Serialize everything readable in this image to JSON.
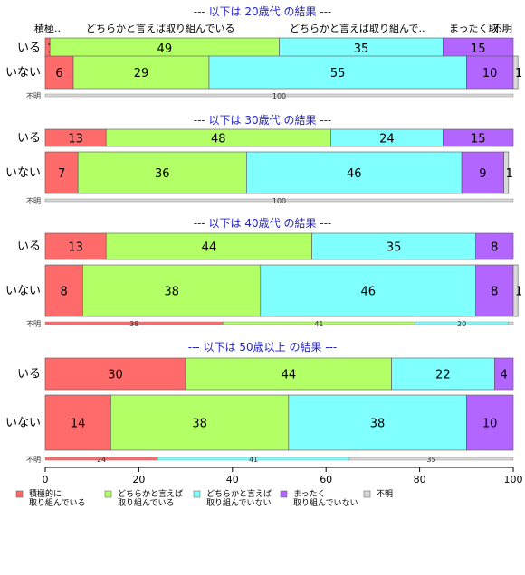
{
  "chart_data": {
    "type": "bar",
    "orientation": "horizontal",
    "stacked": true,
    "xlim": [
      0,
      100
    ],
    "x_ticks": [
      0,
      20,
      40,
      60,
      80,
      100
    ],
    "categories": [
      "積極的に取り組んでいる",
      "どちらかと言えば取り組んでいる",
      "どちらかと言えば取り組んでいない",
      "まったく取り組んでいない",
      "不明"
    ],
    "colors": [
      "#ff6b6b",
      "#b3ff66",
      "#80ffff",
      "#b366ff",
      "#d9d9d9"
    ],
    "column_headers": [
      "積極..",
      "どちらかと言えば取り組んでいる",
      "どちらかと言えば取り組んで..",
      "まったく取..",
      "不明"
    ],
    "legend": {
      "position": "bottom",
      "items": [
        {
          "line1": "積極的に",
          "line2": "取り組んでいる"
        },
        {
          "line1": "どちらかと言えば",
          "line2": "取り組んでいる"
        },
        {
          "line1": "どちらかと言えば",
          "line2": "取り組んでいない"
        },
        {
          "line1": "まったく",
          "line2": "取り組んでいない"
        },
        {
          "line1": "不明",
          "line2": ""
        }
      ]
    },
    "panels": [
      {
        "title": "--- 以下は 20歳代 の結果 ---",
        "rows": [
          {
            "label": "いる",
            "values": [
              1,
              49,
              35,
              15,
              0
            ],
            "labels": [
              "1",
              "49",
              "35",
              "15",
              ""
            ]
          },
          {
            "label": "いない",
            "values": [
              6,
              29,
              55,
              10,
              1
            ],
            "labels": [
              "6",
              "29",
              "55",
              "10",
              "1"
            ]
          }
        ],
        "unknown": {
          "label": "不明",
          "values": [
            0,
            0,
            0,
            0,
            100
          ],
          "labels": [
            "",
            "",
            "",
            "",
            "100"
          ]
        }
      },
      {
        "title": "--- 以下は 30歳代 の結果 ---",
        "rows": [
          {
            "label": "いる",
            "values": [
              13,
              48,
              24,
              15,
              0
            ],
            "labels": [
              "13",
              "48",
              "24",
              "15",
              ""
            ]
          },
          {
            "label": "いない",
            "values": [
              7,
              36,
              46,
              9,
              1
            ],
            "labels": [
              "7",
              "36",
              "46",
              "9",
              "1"
            ]
          }
        ],
        "unknown": {
          "label": "不明",
          "values": [
            0,
            0,
            0,
            0,
            100
          ],
          "labels": [
            "",
            "",
            "",
            "",
            "100"
          ]
        }
      },
      {
        "title": "--- 以下は 40歳代 の結果 ---",
        "rows": [
          {
            "label": "いる",
            "values": [
              13,
              44,
              35,
              8,
              0
            ],
            "labels": [
              "13",
              "44",
              "35",
              "8",
              ""
            ]
          },
          {
            "label": "いない",
            "values": [
              8,
              38,
              46,
              8,
              1
            ],
            "labels": [
              "8",
              "38",
              "46",
              "8",
              "1"
            ]
          }
        ],
        "unknown": {
          "label": "不明",
          "values": [
            38,
            41,
            20,
            0,
            1
          ],
          "labels": [
            "38",
            "41",
            "20",
            "",
            ""
          ]
        }
      },
      {
        "title": "--- 以下は 50歳以上 の結果 ---",
        "rows": [
          {
            "label": "いる",
            "values": [
              30,
              44,
              22,
              4,
              0
            ],
            "labels": [
              "30",
              "44",
              "22",
              "4",
              ""
            ]
          },
          {
            "label": "いない",
            "values": [
              14,
              38,
              38,
              10,
              0
            ],
            "labels": [
              "14",
              "38",
              "38",
              "10",
              ""
            ]
          }
        ],
        "unknown": {
          "label": "不明",
          "values": [
            24,
            0,
            41,
            0,
            35
          ],
          "labels": [
            "24",
            "",
            "41",
            "",
            "35"
          ]
        }
      }
    ]
  }
}
